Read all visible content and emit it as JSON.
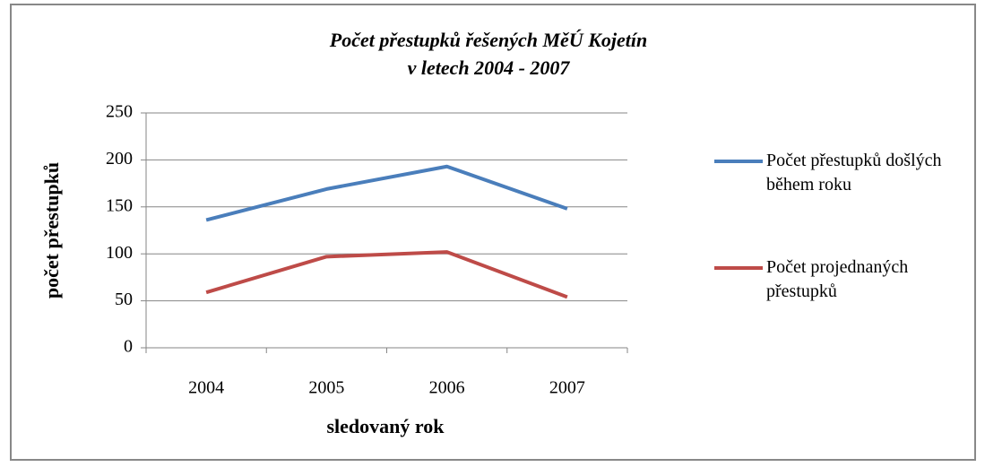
{
  "chart_data": {
    "type": "line",
    "title": [
      "Počet přestupků řešených MěÚ Kojetín",
      "v letech 2004 - 2007"
    ],
    "x_label": "sledovaný rok",
    "y_label": "počet přestupků",
    "categories": [
      "2004",
      "2005",
      "2006",
      "2007"
    ],
    "series": [
      {
        "name": "Počet přestupků došlých během roku",
        "color": "#4a7ebb",
        "values": [
          136,
          169,
          193,
          148
        ]
      },
      {
        "name": "Počet projednaných přestupků",
        "color": "#be4b48",
        "values": [
          59,
          97,
          102,
          54
        ]
      }
    ],
    "ylim": [
      0,
      250
    ],
    "yticks": [
      0,
      50,
      100,
      150,
      200,
      250
    ],
    "grid": true,
    "legend": "right"
  }
}
